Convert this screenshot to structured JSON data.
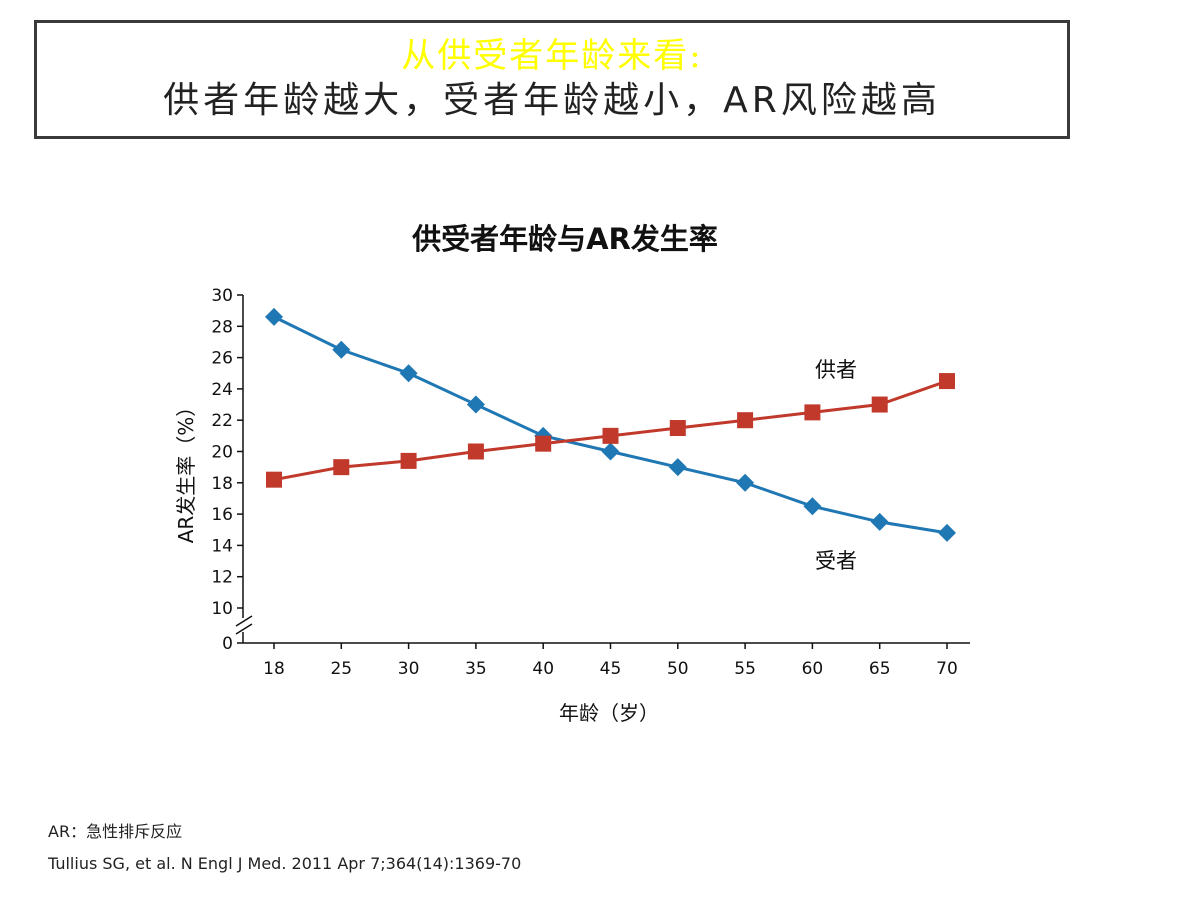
{
  "headline": {
    "subtitle": "从供受者年龄来看:",
    "main": "供者年龄越大，受者年龄越小，AR风险越高"
  },
  "chart_data": {
    "type": "line",
    "title": "供受者年龄与AR发生率",
    "xlabel": "年龄（岁）",
    "ylabel": "AR发生率（%）",
    "x": [
      18,
      25,
      30,
      35,
      40,
      45,
      50,
      55,
      60,
      65,
      70
    ],
    "yticks": [
      0,
      10,
      12,
      14,
      16,
      18,
      20,
      22,
      24,
      26,
      28,
      30
    ],
    "ylim": [
      0,
      30
    ],
    "axis_break": true,
    "grid": false,
    "series": [
      {
        "name": "受者",
        "marker": "diamond",
        "color": "#1f77b4",
        "values": [
          28.6,
          26.5,
          25.0,
          23.0,
          21.0,
          20.0,
          19.0,
          18.0,
          16.5,
          15.5,
          14.8
        ]
      },
      {
        "name": "供者",
        "marker": "square",
        "color": "#c0392b",
        "values": [
          18.2,
          19.0,
          19.4,
          20.0,
          20.5,
          21.0,
          21.5,
          22.0,
          22.5,
          23.0,
          24.5
        ]
      }
    ]
  },
  "footnotes": {
    "abbreviation": "AR：急性排斥反应",
    "reference": "Tullius SG, et al. N Engl J Med. 2011 Apr 7;364(14):1369-70"
  }
}
